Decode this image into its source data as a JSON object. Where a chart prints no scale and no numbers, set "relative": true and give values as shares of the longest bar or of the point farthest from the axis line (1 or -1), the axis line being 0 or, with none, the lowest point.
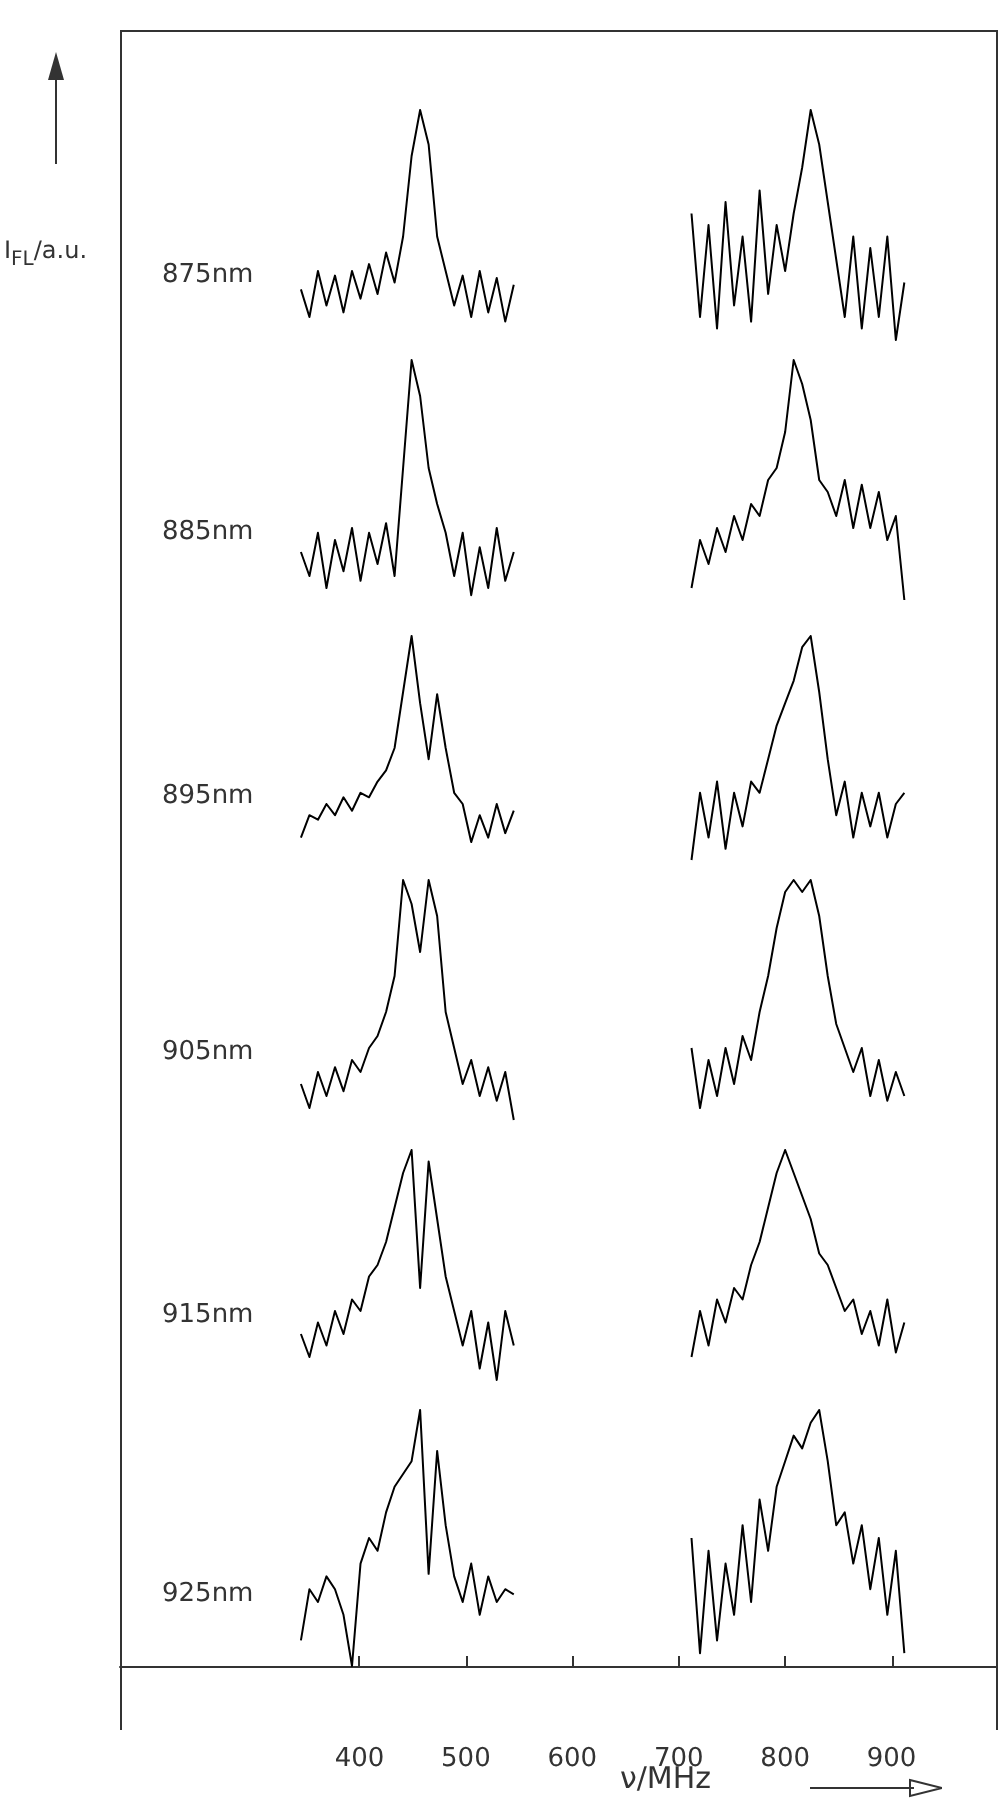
{
  "chart_data": [
    {
      "type": "line",
      "relative": true,
      "ylabel": "I$_{FL}$/a.u.",
      "xlim": [
        175,
        1000
      ],
      "tick_labels": false,
      "annotations": [
        "875nm"
      ],
      "series": [
        {
          "color": "#000000",
          "x": [
            345,
            353,
            361,
            369,
            377,
            385,
            393,
            401,
            409,
            417,
            425,
            433,
            441,
            449,
            457,
            465,
            473,
            481,
            489,
            497,
            505,
            513,
            521,
            529,
            537,
            545
          ],
          "values": [
            0.22,
            0.1,
            0.3,
            0.15,
            0.28,
            0.12,
            0.3,
            0.18,
            0.33,
            0.2,
            0.38,
            0.25,
            0.45,
            0.8,
            1.0,
            0.85,
            0.45,
            0.3,
            0.15,
            0.28,
            0.1,
            0.3,
            0.12,
            0.27,
            0.08,
            0.24
          ]
        },
        {
          "color": "#000000",
          "x": [
            712,
            720,
            728,
            736,
            744,
            752,
            760,
            768,
            776,
            784,
            792,
            800,
            808,
            816,
            824,
            832,
            840,
            848,
            856,
            864,
            872,
            880,
            888,
            896,
            904,
            912
          ],
          "values": [
            0.55,
            0.1,
            0.5,
            0.05,
            0.6,
            0.15,
            0.45,
            0.08,
            0.65,
            0.2,
            0.5,
            0.3,
            0.55,
            0.75,
            1.0,
            0.85,
            0.6,
            0.35,
            0.1,
            0.45,
            0.05,
            0.4,
            0.1,
            0.45,
            0.0,
            0.25
          ]
        }
      ]
    },
    {
      "type": "line",
      "relative": true,
      "xlim": [
        175,
        1000
      ],
      "tick_labels": false,
      "annotations": [
        "885nm"
      ],
      "series": [
        {
          "color": "#000000",
          "x": [
            345,
            353,
            361,
            369,
            377,
            385,
            393,
            401,
            409,
            417,
            425,
            433,
            441,
            449,
            457,
            465,
            473,
            481,
            489,
            497,
            505,
            513,
            521,
            529,
            537,
            545
          ],
          "values": [
            0.2,
            0.1,
            0.28,
            0.05,
            0.25,
            0.12,
            0.3,
            0.08,
            0.28,
            0.15,
            0.32,
            0.1,
            0.55,
            1.0,
            0.85,
            0.55,
            0.4,
            0.28,
            0.1,
            0.28,
            0.02,
            0.22,
            0.05,
            0.3,
            0.08,
            0.2
          ]
        },
        {
          "color": "#000000",
          "x": [
            712,
            720,
            728,
            736,
            744,
            752,
            760,
            768,
            776,
            784,
            792,
            800,
            808,
            816,
            824,
            832,
            840,
            848,
            856,
            864,
            872,
            880,
            888,
            896,
            904,
            912
          ],
          "values": [
            0.05,
            0.25,
            0.15,
            0.3,
            0.2,
            0.35,
            0.25,
            0.4,
            0.35,
            0.5,
            0.55,
            0.7,
            1.0,
            0.9,
            0.75,
            0.5,
            0.45,
            0.35,
            0.5,
            0.3,
            0.48,
            0.3,
            0.45,
            0.25,
            0.35,
            0.0
          ]
        }
      ]
    },
    {
      "type": "line",
      "relative": true,
      "xlim": [
        175,
        1000
      ],
      "tick_labels": false,
      "annotations": [
        "895nm"
      ],
      "series": [
        {
          "color": "#000000",
          "x": [
            345,
            353,
            361,
            369,
            377,
            385,
            393,
            401,
            409,
            417,
            425,
            433,
            441,
            449,
            457,
            465,
            473,
            481,
            489,
            497,
            505,
            513,
            521,
            529,
            537,
            545
          ],
          "values": [
            0.1,
            0.2,
            0.18,
            0.25,
            0.2,
            0.28,
            0.22,
            0.3,
            0.28,
            0.35,
            0.4,
            0.5,
            0.75,
            1.0,
            0.7,
            0.45,
            0.74,
            0.5,
            0.3,
            0.25,
            0.08,
            0.2,
            0.1,
            0.25,
            0.12,
            0.22
          ]
        },
        {
          "color": "#000000",
          "x": [
            712,
            720,
            728,
            736,
            744,
            752,
            760,
            768,
            776,
            784,
            792,
            800,
            808,
            816,
            824,
            832,
            840,
            848,
            856,
            864,
            872,
            880,
            888,
            896,
            904,
            912
          ],
          "values": [
            0.0,
            0.3,
            0.1,
            0.35,
            0.05,
            0.3,
            0.15,
            0.35,
            0.3,
            0.45,
            0.6,
            0.7,
            0.8,
            0.95,
            1.0,
            0.75,
            0.45,
            0.2,
            0.35,
            0.1,
            0.3,
            0.15,
            0.3,
            0.1,
            0.25,
            0.3
          ]
        }
      ]
    },
    {
      "type": "line",
      "relative": true,
      "xlim": [
        175,
        1000
      ],
      "tick_labels": false,
      "annotations": [
        "905nm"
      ],
      "series": [
        {
          "color": "#000000",
          "x": [
            345,
            353,
            361,
            369,
            377,
            385,
            393,
            401,
            409,
            417,
            425,
            433,
            441,
            449,
            457,
            465,
            473,
            481,
            489,
            497,
            505,
            513,
            521,
            529,
            537,
            545
          ],
          "values": [
            0.15,
            0.05,
            0.2,
            0.1,
            0.22,
            0.12,
            0.25,
            0.2,
            0.3,
            0.35,
            0.45,
            0.6,
            1.0,
            0.9,
            0.7,
            1.0,
            0.85,
            0.45,
            0.3,
            0.15,
            0.25,
            0.1,
            0.22,
            0.08,
            0.2,
            0.0
          ]
        },
        {
          "color": "#000000",
          "x": [
            712,
            720,
            728,
            736,
            744,
            752,
            760,
            768,
            776,
            784,
            792,
            800,
            808,
            816,
            824,
            832,
            840,
            848,
            856,
            864,
            872,
            880,
            888,
            896,
            904,
            912
          ],
          "values": [
            0.3,
            0.05,
            0.25,
            0.1,
            0.3,
            0.15,
            0.35,
            0.25,
            0.45,
            0.6,
            0.8,
            0.95,
            1.0,
            0.95,
            1.0,
            0.85,
            0.6,
            0.4,
            0.3,
            0.2,
            0.3,
            0.1,
            0.25,
            0.08,
            0.2,
            0.1
          ]
        }
      ]
    },
    {
      "type": "line",
      "relative": true,
      "xlim": [
        175,
        1000
      ],
      "tick_labels": false,
      "annotations": [
        "915nm"
      ],
      "series": [
        {
          "color": "#000000",
          "x": [
            345,
            353,
            361,
            369,
            377,
            385,
            393,
            401,
            409,
            417,
            425,
            433,
            441,
            449,
            457,
            465,
            473,
            481,
            489,
            497,
            505,
            513,
            521,
            529,
            537,
            545
          ],
          "values": [
            0.2,
            0.1,
            0.25,
            0.15,
            0.3,
            0.2,
            0.35,
            0.3,
            0.45,
            0.5,
            0.6,
            0.75,
            0.9,
            1.0,
            0.4,
            0.95,
            0.7,
            0.45,
            0.3,
            0.15,
            0.3,
            0.05,
            0.25,
            0.0,
            0.3,
            0.15
          ]
        },
        {
          "color": "#000000",
          "x": [
            712,
            720,
            728,
            736,
            744,
            752,
            760,
            768,
            776,
            784,
            792,
            800,
            808,
            816,
            824,
            832,
            840,
            848,
            856,
            864,
            872,
            880,
            888,
            896,
            904,
            912
          ],
          "values": [
            0.1,
            0.3,
            0.15,
            0.35,
            0.25,
            0.4,
            0.35,
            0.5,
            0.6,
            0.75,
            0.9,
            1.0,
            0.9,
            0.8,
            0.7,
            0.55,
            0.5,
            0.4,
            0.3,
            0.35,
            0.2,
            0.3,
            0.15,
            0.35,
            0.12,
            0.25
          ]
        }
      ]
    },
    {
      "type": "line",
      "relative": true,
      "xlabel": "ν/MHz",
      "xlim": [
        175,
        1000
      ],
      "xticks": [
        400,
        500,
        600,
        700,
        800,
        900
      ],
      "tick_labels": "x",
      "annotations": [
        "925nm"
      ],
      "series": [
        {
          "color": "#000000",
          "x": [
            345,
            353,
            361,
            369,
            377,
            385,
            393,
            401,
            409,
            417,
            425,
            433,
            441,
            449,
            457,
            465,
            473,
            481,
            489,
            497,
            505,
            513,
            521,
            529,
            537,
            545
          ],
          "values": [
            0.1,
            0.3,
            0.25,
            0.35,
            0.3,
            0.2,
            0.0,
            0.4,
            0.5,
            0.45,
            0.6,
            0.7,
            0.75,
            0.8,
            1.0,
            0.36,
            0.84,
            0.55,
            0.35,
            0.25,
            0.4,
            0.2,
            0.35,
            0.25,
            0.3,
            0.28
          ]
        },
        {
          "color": "#000000",
          "x": [
            712,
            720,
            728,
            736,
            744,
            752,
            760,
            768,
            776,
            784,
            792,
            800,
            808,
            816,
            824,
            832,
            840,
            848,
            856,
            864,
            872,
            880,
            888,
            896,
            904,
            912
          ],
          "values": [
            0.5,
            0.05,
            0.45,
            0.1,
            0.4,
            0.2,
            0.55,
            0.25,
            0.65,
            0.45,
            0.7,
            0.8,
            0.9,
            0.85,
            0.95,
            1.0,
            0.8,
            0.55,
            0.6,
            0.4,
            0.55,
            0.3,
            0.5,
            0.2,
            0.45,
            0.05
          ]
        }
      ]
    }
  ]
}
